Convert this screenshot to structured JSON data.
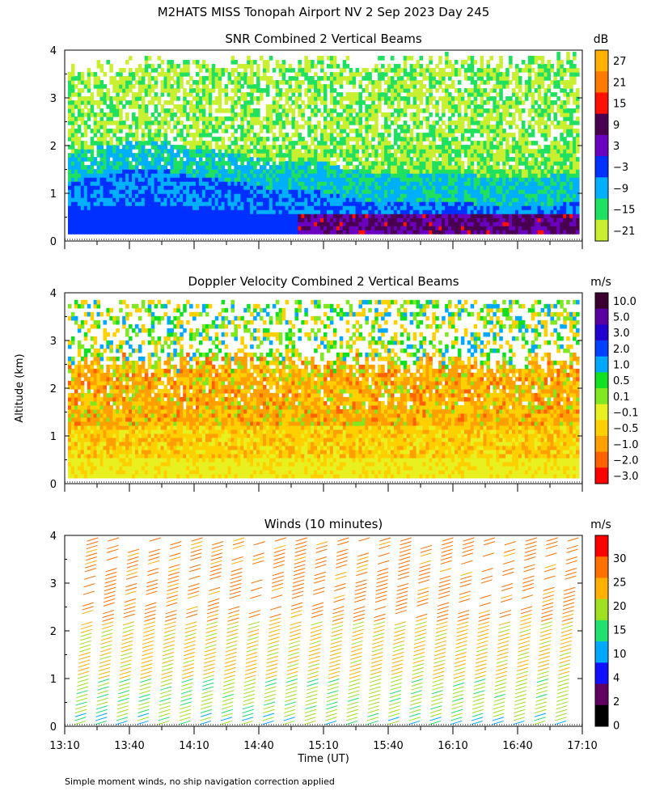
{
  "figure": {
    "title": "M2HATS MISS Tonopah Airport NV   2 Sep 2023 Day 245",
    "ylabel": "Altitude (km)",
    "xlabel": "Time (UT)",
    "footnote": "Simple moment winds, no ship navigation correction applied"
  },
  "chart_data": [
    {
      "type": "heatmap",
      "title": "SNR Combined 2 Vertical Beams",
      "ylabel": "Altitude (km)",
      "ylim": [
        0,
        4
      ],
      "xlim_hours": [
        13.1667,
        17.1667
      ],
      "y_ticks": [
        "0",
        "1",
        "2",
        "3",
        "4"
      ],
      "colorbar": {
        "unit": "dB",
        "labels": [
          "27",
          "21",
          "15",
          "9",
          "3",
          "−3",
          "−9",
          "−15",
          "−21"
        ],
        "colors": [
          "#ffb000",
          "#ff7a00",
          "#ff1000",
          "#4a0050",
          "#6a00c0",
          "#0030ff",
          "#00b0ff",
          "#20e060",
          "#c8f030"
        ]
      },
      "structure": {
        "echo_top_km": [
          3.7,
          3.8,
          3.9,
          3.85,
          3.9,
          3.8,
          3.9,
          3.85,
          3.9,
          3.95,
          3.9,
          3.95,
          3.95
        ],
        "blue_layer_top_km": [
          1.2,
          1.4,
          1.5,
          1.3,
          1.2,
          1.0,
          1.0,
          0.8,
          0.8,
          0.8,
          0.7,
          0.7,
          0.8
        ],
        "lower_first_gate_km": 0.15
      }
    },
    {
      "type": "heatmap",
      "title": "Doppler Velocity Combined 2 Vertical Beams",
      "ylabel": "Altitude (km)",
      "ylim": [
        0,
        4
      ],
      "y_ticks": [
        "0",
        "1",
        "2",
        "3",
        "4"
      ],
      "colorbar": {
        "unit": "m/s",
        "labels": [
          "10.0",
          "5.0",
          "3.0",
          "2.0",
          "1.0",
          "0.5",
          "0.1",
          "−0.1",
          "−0.5",
          "−1.0",
          "−2.0",
          "−3.0"
        ],
        "colors": [
          "#3a0030",
          "#5a00a0",
          "#2000d0",
          "#0040ff",
          "#00a8ff",
          "#10e020",
          "#80e820",
          "#e8f020",
          "#ffd000",
          "#ffa000",
          "#ff6000",
          "#ff0000"
        ]
      },
      "structure": {
        "orange_layer_top_km": 2.5,
        "sparse_region_km": [
          2.5,
          3.9
        ]
      }
    },
    {
      "type": "scatter",
      "title": "Winds (10 minutes)",
      "ylabel": "Altitude (km)",
      "ylim": [
        0,
        4
      ],
      "y_ticks": [
        "0",
        "1",
        "2",
        "3",
        "4"
      ],
      "x_tick_labels": [
        "13:10",
        "13:40",
        "14:10",
        "14:40",
        "15:10",
        "15:40",
        "16:10",
        "16:40",
        "17:10"
      ],
      "x_tick_hours": [
        13.1667,
        13.6667,
        14.1667,
        14.6667,
        15.1667,
        15.6667,
        16.1667,
        16.6667,
        17.1667
      ],
      "profile_interval_min": 10,
      "colorbar": {
        "unit": "m/s",
        "labels": [
          "30",
          "25",
          "20",
          "15",
          "10",
          "4",
          "2",
          "0"
        ],
        "colors": [
          "#ff0000",
          "#ff7000",
          "#ffb000",
          "#a0e020",
          "#20e070",
          "#00a8ff",
          "#1010ff",
          "#600060",
          "#000000"
        ]
      },
      "profile_summary": {
        "speed_low_ms": 13,
        "speed_mid_ms": 18,
        "speed_high_ms": 24
      }
    }
  ]
}
